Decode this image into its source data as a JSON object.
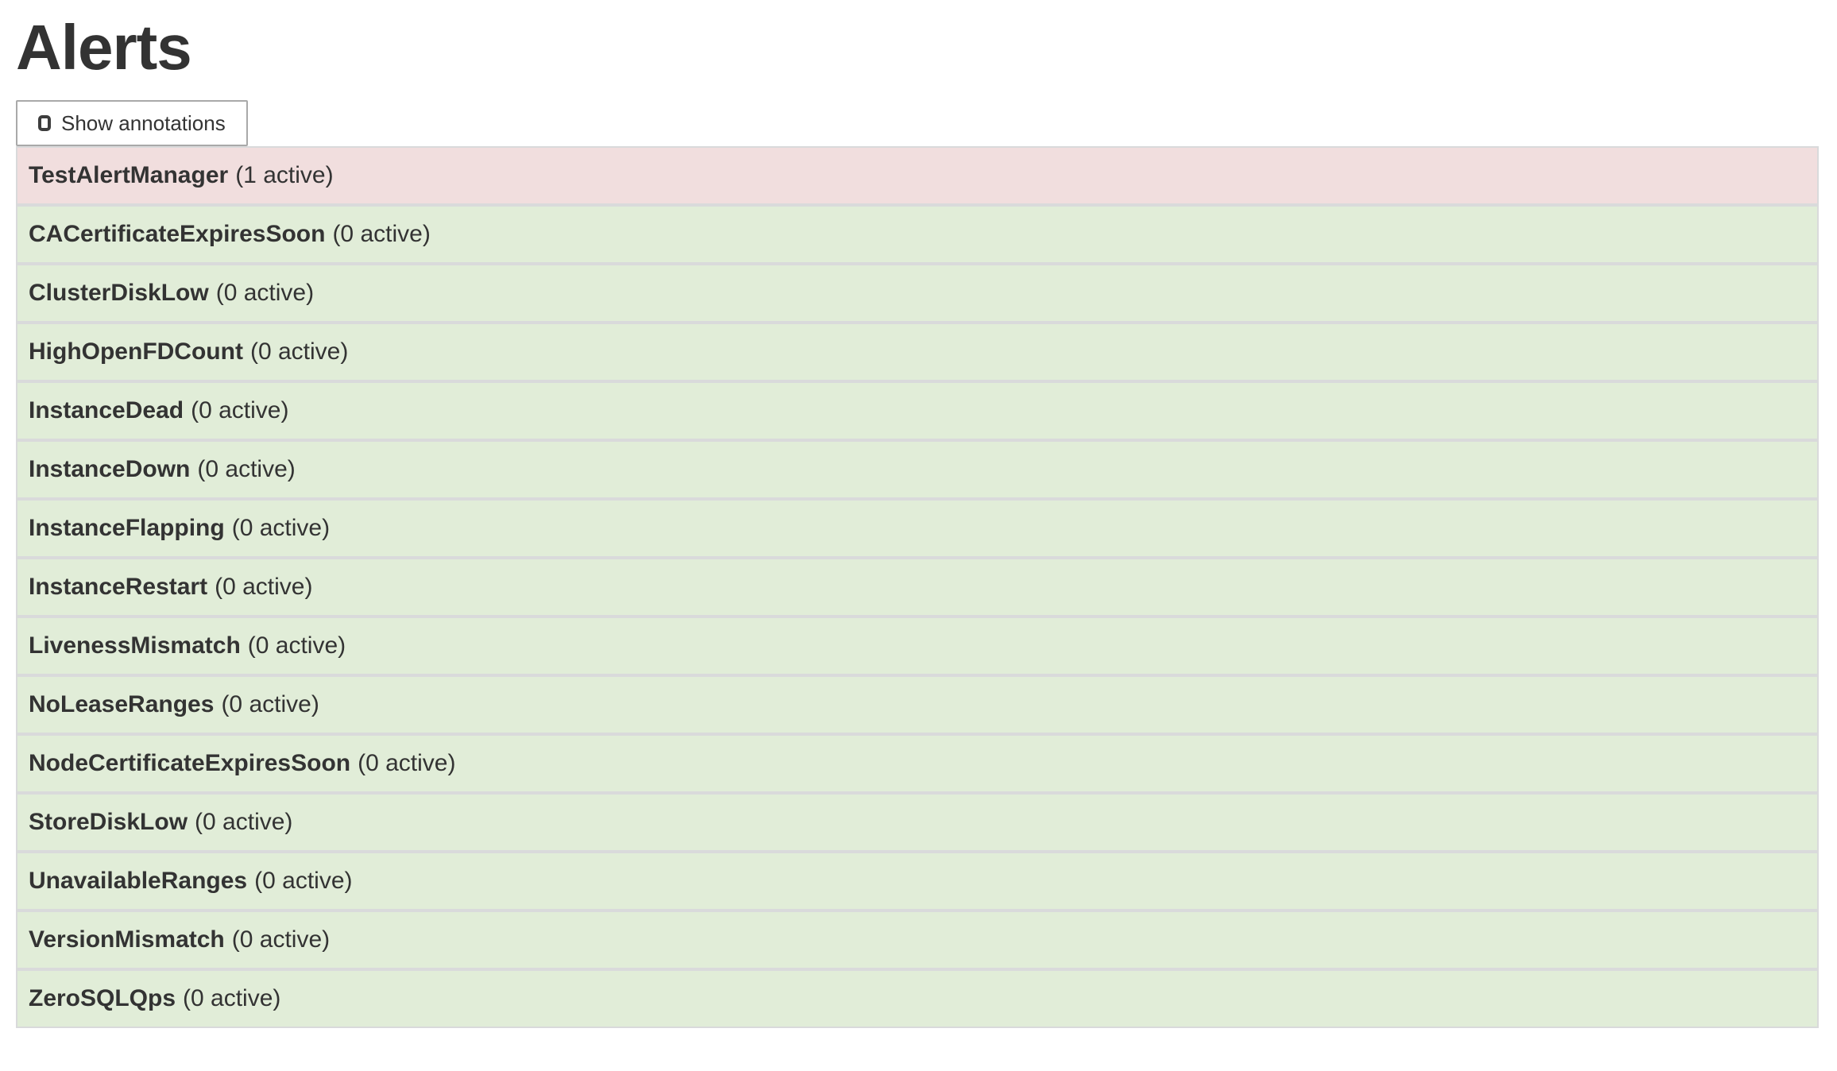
{
  "page": {
    "title": "Alerts"
  },
  "controls": {
    "show_annotations": {
      "label": "Show annotations",
      "checked": false
    }
  },
  "alert_list": {
    "items": [
      {
        "name": "TestAlertManager",
        "active_count": 1,
        "count_label": "(1 active)",
        "state": "firing"
      },
      {
        "name": "CACertificateExpiresSoon",
        "active_count": 0,
        "count_label": "(0 active)",
        "state": "inactive"
      },
      {
        "name": "ClusterDiskLow",
        "active_count": 0,
        "count_label": "(0 active)",
        "state": "inactive"
      },
      {
        "name": "HighOpenFDCount",
        "active_count": 0,
        "count_label": "(0 active)",
        "state": "inactive"
      },
      {
        "name": "InstanceDead",
        "active_count": 0,
        "count_label": "(0 active)",
        "state": "inactive"
      },
      {
        "name": "InstanceDown",
        "active_count": 0,
        "count_label": "(0 active)",
        "state": "inactive"
      },
      {
        "name": "InstanceFlapping",
        "active_count": 0,
        "count_label": "(0 active)",
        "state": "inactive"
      },
      {
        "name": "InstanceRestart",
        "active_count": 0,
        "count_label": "(0 active)",
        "state": "inactive"
      },
      {
        "name": "LivenessMismatch",
        "active_count": 0,
        "count_label": "(0 active)",
        "state": "inactive"
      },
      {
        "name": "NoLeaseRanges",
        "active_count": 0,
        "count_label": "(0 active)",
        "state": "inactive"
      },
      {
        "name": "NodeCertificateExpiresSoon",
        "active_count": 0,
        "count_label": "(0 active)",
        "state": "inactive"
      },
      {
        "name": "StoreDiskLow",
        "active_count": 0,
        "count_label": "(0 active)",
        "state": "inactive"
      },
      {
        "name": "UnavailableRanges",
        "active_count": 0,
        "count_label": "(0 active)",
        "state": "inactive"
      },
      {
        "name": "VersionMismatch",
        "active_count": 0,
        "count_label": "(0 active)",
        "state": "inactive"
      },
      {
        "name": "ZeroSQLQps",
        "active_count": 0,
        "count_label": "(0 active)",
        "state": "inactive"
      }
    ]
  },
  "colors": {
    "firing_bg": "#f1dede",
    "inactive_bg": "#e1edd8",
    "row_border": "#d9dadb",
    "text": "#333333"
  }
}
